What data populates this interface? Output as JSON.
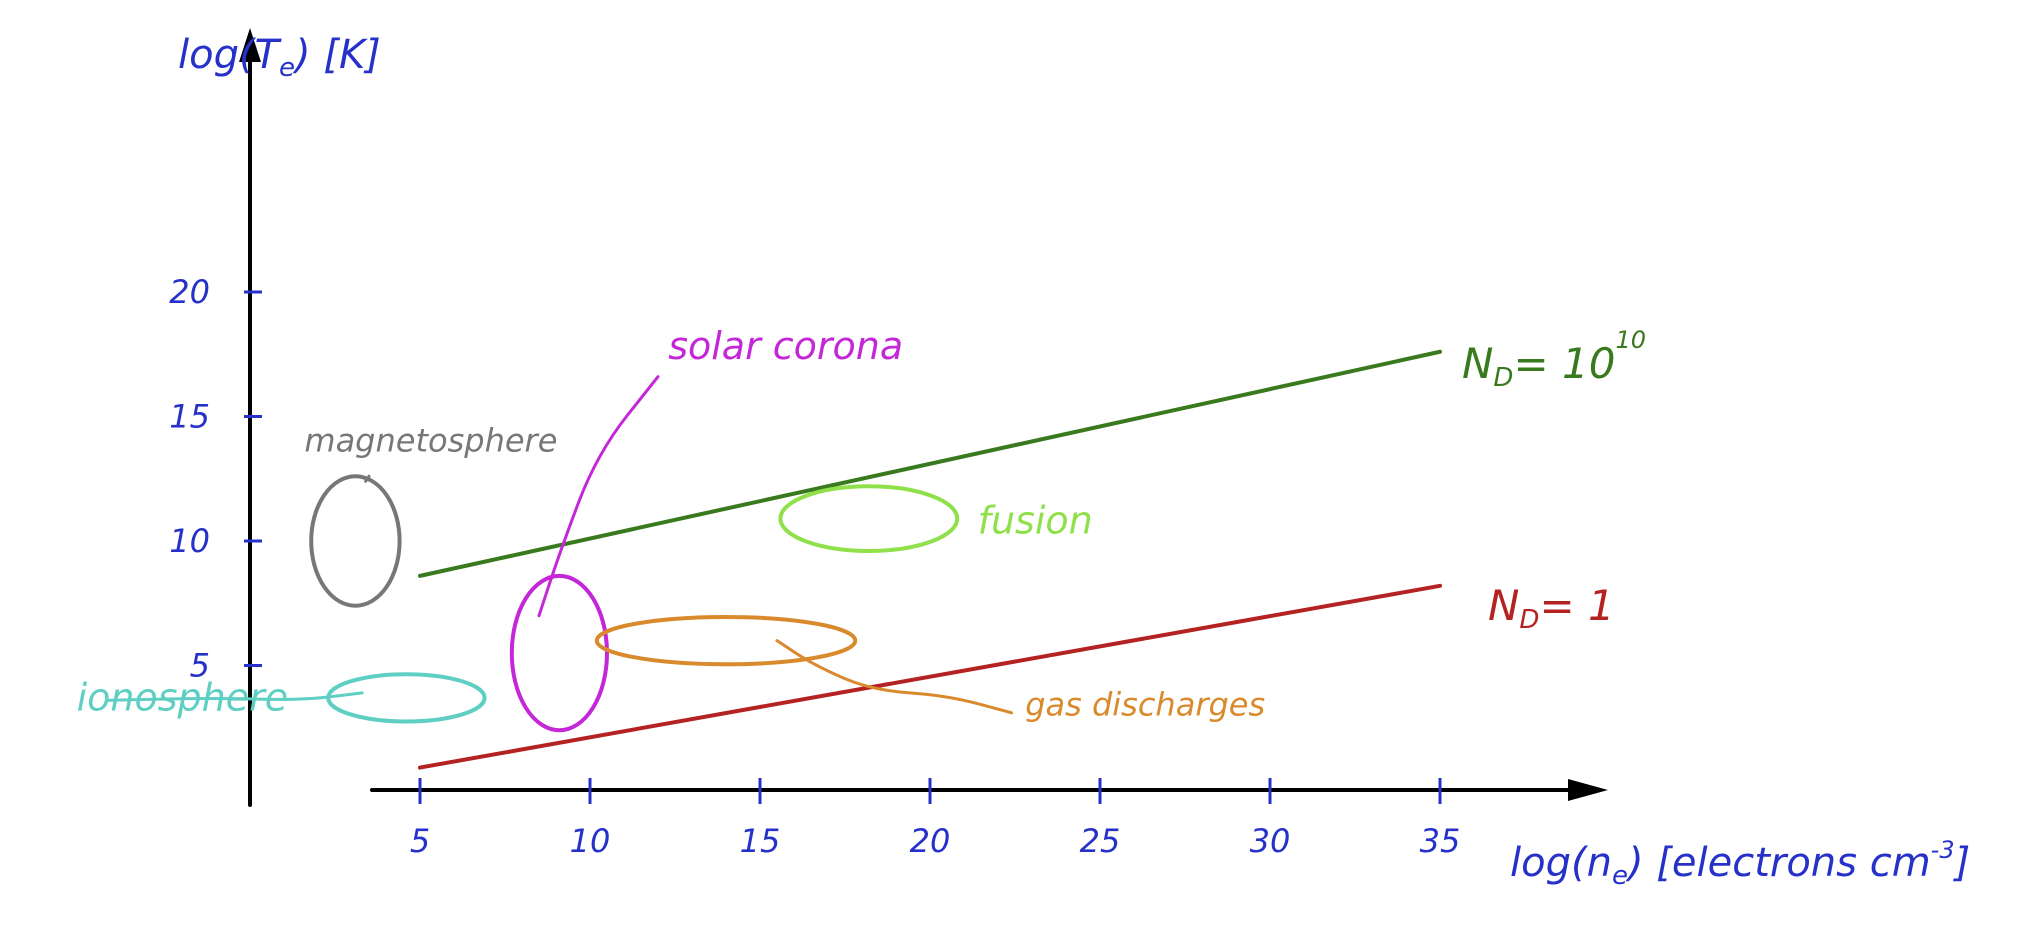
{
  "chart_data": {
    "type": "line",
    "xlabel": "log(n",
    "xlabel_sub": "e",
    "xlabel_unit": ") [electrons cm",
    "xlabel_sup": "-3",
    "xlabel_end": "]",
    "ylabel": "log(T",
    "ylabel_sub": "e",
    "ylabel_unit": ") [K]",
    "x_ticks": [
      {
        "value": 5,
        "label": "5"
      },
      {
        "value": 10,
        "label": "10"
      },
      {
        "value": 15,
        "label": "15"
      },
      {
        "value": 20,
        "label": "20"
      },
      {
        "value": 25,
        "label": "25"
      },
      {
        "value": 30,
        "label": "30"
      },
      {
        "value": 35,
        "label": "35"
      }
    ],
    "y_ticks": [
      {
        "value": 5,
        "label": "5"
      },
      {
        "value": 10,
        "label": "10"
      },
      {
        "value": 15,
        "label": "15"
      },
      {
        "value": 20,
        "label": "20"
      }
    ],
    "xlim": [
      0,
      40
    ],
    "ylim": [
      0,
      32
    ],
    "grid": false,
    "series": [
      {
        "name": "N",
        "name_sub": "D",
        "name_rest": "= 10",
        "name_sup": "10",
        "color": "#3a7a1e",
        "points": [
          [
            5,
            8.6
          ],
          [
            35,
            17.6
          ]
        ]
      },
      {
        "name": "N",
        "name_sub": "D",
        "name_rest": "= 1",
        "name_sup": "",
        "color": "#b52222",
        "points": [
          [
            5,
            0.9
          ],
          [
            35,
            8.2
          ]
        ]
      }
    ],
    "regions": [
      {
        "label": "magnetosphere",
        "color": "#777777",
        "cx": 3.1,
        "cy": 10.0,
        "rx": 1.3,
        "ry": 2.6,
        "label_at": [
          1.6,
          13.6
        ],
        "label_anchor": "start",
        "leader": [
          [
            3.5,
            12.6
          ],
          [
            3.4,
            12.4
          ]
        ]
      },
      {
        "label": "solar corona",
        "color": "#c427d8",
        "cx": 9.1,
        "cy": 5.5,
        "rx": 1.4,
        "ry": 3.1,
        "label_at": [
          12.3,
          17.3
        ],
        "label_anchor": "start",
        "leader": [
          [
            12.0,
            16.6
          ],
          [
            10.2,
            13.5
          ],
          [
            9.1,
            9.5
          ],
          [
            8.5,
            7.0
          ]
        ]
      },
      {
        "label": "fusion",
        "color": "#8fe04a",
        "cx": 18.2,
        "cy": 10.9,
        "rx": 2.6,
        "ry": 1.3,
        "label_at": [
          21.4,
          10.3
        ],
        "label_anchor": "start",
        "leader": []
      },
      {
        "label": "gas discharges",
        "color": "#d98a2c",
        "cx": 14.0,
        "cy": 6.0,
        "rx": 3.8,
        "ry": 0.95,
        "label_at": [
          22.8,
          3.0
        ],
        "label_anchor": "start",
        "leader": [
          [
            15.5,
            6.0
          ],
          [
            16.6,
            5.0
          ],
          [
            18.3,
            4.0
          ],
          [
            20.5,
            3.8
          ],
          [
            22.4,
            3.1
          ]
        ]
      },
      {
        "label": "ionosphere",
        "color": "#5ecfc2",
        "cx": 4.6,
        "cy": 3.7,
        "rx": 2.3,
        "ry": 0.95,
        "label_at": [
          -5.1,
          3.2
        ],
        "label_anchor": "start",
        "leader": [
          [
            3.3,
            3.9
          ],
          [
            1.5,
            3.6
          ],
          [
            -1.0,
            3.7
          ],
          [
            -4.2,
            3.6
          ]
        ]
      }
    ]
  }
}
